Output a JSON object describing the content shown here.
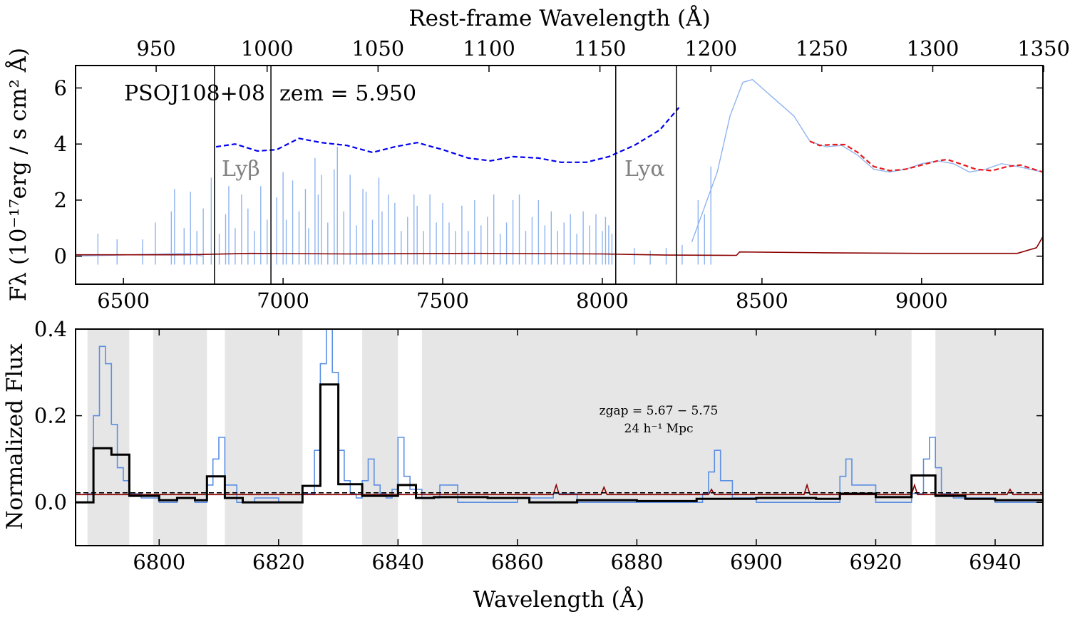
{
  "chart_data": [
    {
      "panel": "top",
      "type": "line",
      "title": "",
      "xlabel": "",
      "ylabel": "Fλ (10⁻¹⁷erg / s cm² Å)",
      "secondary_xlabel": "Rest-frame Wavelength (Å)",
      "xlim": [
        6350,
        9380
      ],
      "ylim": [
        -1.0,
        6.8
      ],
      "xticks": [
        6500,
        7000,
        7500,
        8000,
        8500,
        9000
      ],
      "yticks": [
        0,
        2,
        4,
        6
      ],
      "rest_frame_ticks": [
        950,
        1000,
        1050,
        1100,
        1150,
        1200,
        1250,
        1300,
        1350
      ],
      "z_em": 5.95,
      "annotations": {
        "object": "PSOJ108+08",
        "redshift": "zem = 5.950",
        "lyb": "Lyβ",
        "lya": "Lyα"
      },
      "vertical_lines_observed_A": [
        6785,
        6962,
        8042,
        8232
      ],
      "series": [
        {
          "role": "spectrum flux",
          "color": "#8fb4ef",
          "segments": [
            {
              "x": [
                6350,
                6700,
                6750
              ],
              "y": [
                0.0,
                0.1,
                0.0
              ]
            },
            {
              "x": [
                8280,
                8360,
                8400,
                8440,
                8470,
                8500,
                8550,
                8600,
                8650,
                8700,
                8750,
                8800,
                8850,
                8900,
                8950,
                9000,
                9050,
                9100,
                9150,
                9200,
                9250,
                9300,
                9380
              ],
              "y": [
                0.5,
                3.0,
                5.0,
                6.2,
                6.3,
                6.0,
                5.5,
                5.0,
                4.1,
                3.9,
                3.95,
                3.6,
                3.1,
                3.0,
                3.1,
                3.3,
                3.4,
                3.3,
                3.0,
                3.1,
                3.3,
                3.2,
                3.0
              ]
            }
          ],
          "emission_spikes": {
            "x": [
              6420,
              6480,
              6560,
              6600,
              6650,
              6660,
              6690,
              6710,
              6730,
              6750,
              6775,
              6800,
              6820,
              6830,
              6850,
              6870,
              6890,
              6910,
              6930,
              6950,
              6980,
              7000,
              7010,
              7030,
              7050,
              7070,
              7080,
              7100,
              7110,
              7120,
              7140,
              7160,
              7170,
              7190,
              7210,
              7230,
              7250,
              7260,
              7280,
              7300,
              7310,
              7330,
              7350,
              7370,
              7390,
              7410,
              7420,
              7440,
              7460,
              7480,
              7500,
              7520,
              7540,
              7560,
              7580,
              7600,
              7620,
              7640,
              7660,
              7680,
              7700,
              7720,
              7740,
              7760,
              7780,
              7800,
              7820,
              7840,
              7860,
              7880,
              7900,
              7920,
              7940,
              7960,
              7980,
              8000,
              8010,
              8020,
              8030,
              8100,
              8150,
              8200,
              8250,
              8300,
              8320,
              8340
            ],
            "y": [
              0.8,
              0.6,
              0.6,
              1.2,
              1.6,
              2.4,
              1.0,
              2.3,
              0.9,
              1.7,
              2.8,
              0.8,
              1.5,
              2.5,
              1.0,
              2.2,
              1.7,
              0.9,
              2.5,
              1.3,
              2.1,
              3.0,
              1.3,
              2.7,
              1.6,
              2.4,
              1.0,
              3.5,
              2.2,
              2.9,
              1.2,
              3.1,
              3.9,
              1.6,
              2.9,
              1.1,
              2.4,
              2.3,
              1.3,
              2.8,
              1.6,
              2.2,
              1.9,
              0.9,
              1.4,
              2.2,
              1.8,
              0.9,
              2.2,
              1.2,
              1.9,
              1.2,
              0.9,
              1.8,
              0.9,
              2.0,
              1.1,
              1.4,
              2.2,
              0.8,
              1.2,
              2.0,
              2.2,
              0.9,
              1.4,
              2.0,
              1.1,
              1.6,
              0.9,
              1.2,
              1.5,
              0.8,
              1.6,
              1.1,
              1.5,
              0.9,
              1.4,
              1.1,
              0.8,
              0.3,
              0.2,
              0.3,
              0.4,
              2.0,
              1.5,
              3.2
            ]
          }
        },
        {
          "role": "continuum (dashed)",
          "color": "#0000ee",
          "x": [
            6790,
            6850,
            6920,
            6980,
            7050,
            7120,
            7200,
            7280,
            7350,
            7420,
            7500,
            7580,
            7650,
            7720,
            7800,
            7870,
            7950,
            8020,
            8100,
            8180,
            8240
          ],
          "y": [
            3.9,
            4.0,
            3.75,
            3.8,
            4.2,
            4.05,
            3.95,
            3.7,
            3.9,
            4.05,
            3.8,
            3.5,
            3.4,
            3.55,
            3.5,
            3.35,
            3.35,
            3.55,
            3.95,
            4.5,
            5.3
          ]
        },
        {
          "role": "continuum fit (dashed)",
          "color": "#e8181b",
          "x": [
            8650,
            8680,
            8720,
            8760,
            8800,
            8850,
            8900,
            8950,
            9000,
            9050,
            9080,
            9120,
            9170,
            9220,
            9270,
            9310,
            9380
          ],
          "y": [
            4.1,
            3.95,
            3.98,
            3.98,
            3.7,
            3.2,
            3.05,
            3.1,
            3.25,
            3.4,
            3.45,
            3.3,
            3.1,
            3.05,
            3.2,
            3.25,
            3.0
          ]
        },
        {
          "role": "flux error",
          "color": "#8b0000",
          "x": [
            6350,
            6700,
            6900,
            7200,
            7600,
            8000,
            8200,
            8420,
            8430,
            8700,
            9000,
            9300,
            9360,
            9380
          ],
          "y": [
            0.05,
            0.05,
            0.1,
            0.08,
            0.1,
            0.08,
            0.04,
            0.03,
            0.15,
            0.12,
            0.1,
            0.1,
            0.3,
            0.7
          ]
        }
      ]
    },
    {
      "panel": "bottom",
      "type": "line",
      "title": "",
      "xlabel": "Wavelength (Å)",
      "ylabel": "Normalized Flux",
      "xlim": [
        6786,
        6948
      ],
      "ylim": [
        -0.1,
        0.4
      ],
      "xticks": [
        6800,
        6820,
        6840,
        6860,
        6880,
        6900,
        6920,
        6940
      ],
      "yticks": [
        0.0,
        0.2,
        0.4
      ],
      "annotation_line1": "zgap = 5.67 − 5.75",
      "annotation_line2": "24 h⁻¹ Mpc",
      "gap_regions": [
        [
          6788,
          6795
        ],
        [
          6799,
          6808
        ],
        [
          6811,
          6824
        ],
        [
          6834,
          6840
        ],
        [
          6844,
          6926
        ],
        [
          6930,
          6948
        ]
      ],
      "series": [
        {
          "role": "normalized flux",
          "color": "#5b8fe3",
          "x": [
            6786,
            6788,
            6789,
            6790,
            6791,
            6792,
            6793,
            6794,
            6795,
            6797,
            6800,
            6803,
            6806,
            6808,
            6809,
            6810,
            6811,
            6813,
            6816,
            6820,
            6824,
            6826,
            6827,
            6828,
            6829,
            6830,
            6831,
            6832,
            6833,
            6834,
            6835,
            6836,
            6837,
            6838,
            6839,
            6840,
            6841,
            6842,
            6844,
            6847,
            6850,
            6860,
            6866,
            6870,
            6880,
            6891,
            6892,
            6893,
            6894,
            6896,
            6900,
            6910,
            6914,
            6915,
            6916,
            6920,
            6926,
            6928,
            6929,
            6930,
            6931,
            6933,
            6940,
            6948
          ],
          "y": [
            0.0,
            0.02,
            0.2,
            0.36,
            0.32,
            0.18,
            0.08,
            0.05,
            0.02,
            0.01,
            0.0,
            0.01,
            0.0,
            0.04,
            0.1,
            0.15,
            0.04,
            0.0,
            0.01,
            0.0,
            0.02,
            0.12,
            0.32,
            0.4,
            0.3,
            0.12,
            0.05,
            0.02,
            0.01,
            0.05,
            0.1,
            0.04,
            0.02,
            0.01,
            0.03,
            0.15,
            0.06,
            0.03,
            0.01,
            0.04,
            0.0,
            0.01,
            0.02,
            0.0,
            0.0,
            0.02,
            0.07,
            0.12,
            0.05,
            0.01,
            0.0,
            0.0,
            0.06,
            0.1,
            0.04,
            0.0,
            0.02,
            0.1,
            0.15,
            0.08,
            0.02,
            0.01,
            0.0,
            0.01
          ]
        },
        {
          "role": "binned flux (steps)",
          "color": "#000000",
          "edges": [
            6786,
            6789,
            6792,
            6795,
            6800,
            6803,
            6806,
            6808,
            6811,
            6814,
            6820,
            6824,
            6827,
            6830,
            6834,
            6837,
            6840,
            6843,
            6846,
            6855,
            6862,
            6870,
            6880,
            6890,
            6900,
            6910,
            6914,
            6920,
            6926,
            6930,
            6935,
            6940,
            6948
          ],
          "values": [
            0.0,
            0.125,
            0.11,
            0.015,
            0.005,
            0.01,
            0.005,
            0.06,
            0.01,
            0.0,
            0.0,
            0.038,
            0.272,
            0.042,
            0.015,
            0.015,
            0.04,
            0.01,
            0.012,
            0.01,
            0.0,
            0.005,
            0.003,
            0.008,
            0.01,
            0.008,
            0.02,
            0.012,
            0.062,
            0.015,
            0.008,
            0.005
          ]
        },
        {
          "role": "flux error",
          "color": "#8b0000",
          "x": [
            6786,
            6866,
            6866.5,
            6867,
            6874,
            6874.5,
            6875,
            6892,
            6892.5,
            6893,
            6908,
            6908.5,
            6909,
            6926,
            6926.5,
            6927,
            6942,
            6942.5,
            6943,
            6948
          ],
          "y": [
            0.018,
            0.018,
            0.04,
            0.018,
            0.018,
            0.035,
            0.018,
            0.018,
            0.03,
            0.018,
            0.018,
            0.04,
            0.018,
            0.018,
            0.04,
            0.018,
            0.018,
            0.03,
            0.018,
            0.018
          ]
        },
        {
          "role": "reference level (dashed)",
          "color": "#000000",
          "x": [
            6786,
            6948
          ],
          "y": [
            0.022,
            0.022
          ]
        }
      ]
    }
  ]
}
